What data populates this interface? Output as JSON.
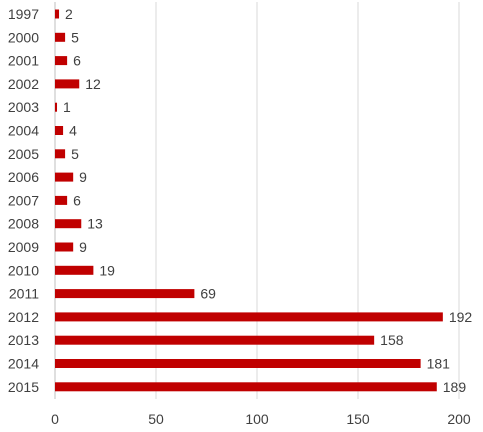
{
  "chart_data": {
    "type": "bar",
    "orientation": "horizontal",
    "title": "",
    "xlabel": "",
    "ylabel": "",
    "categories": [
      "1997",
      "2000",
      "2001",
      "2002",
      "2003",
      "2004",
      "2005",
      "2006",
      "2007",
      "2008",
      "2009",
      "2010",
      "2011",
      "2012",
      "2013",
      "2014",
      "2015"
    ],
    "values": [
      2,
      5,
      6,
      12,
      1,
      4,
      5,
      9,
      6,
      13,
      9,
      19,
      69,
      192,
      158,
      181,
      189
    ],
    "xlim": [
      0,
      200
    ],
    "xticks": [
      0,
      50,
      100,
      150,
      200
    ],
    "grid": "vertical",
    "bar_color": "#c00000",
    "legend": "none",
    "data_labels": true
  }
}
